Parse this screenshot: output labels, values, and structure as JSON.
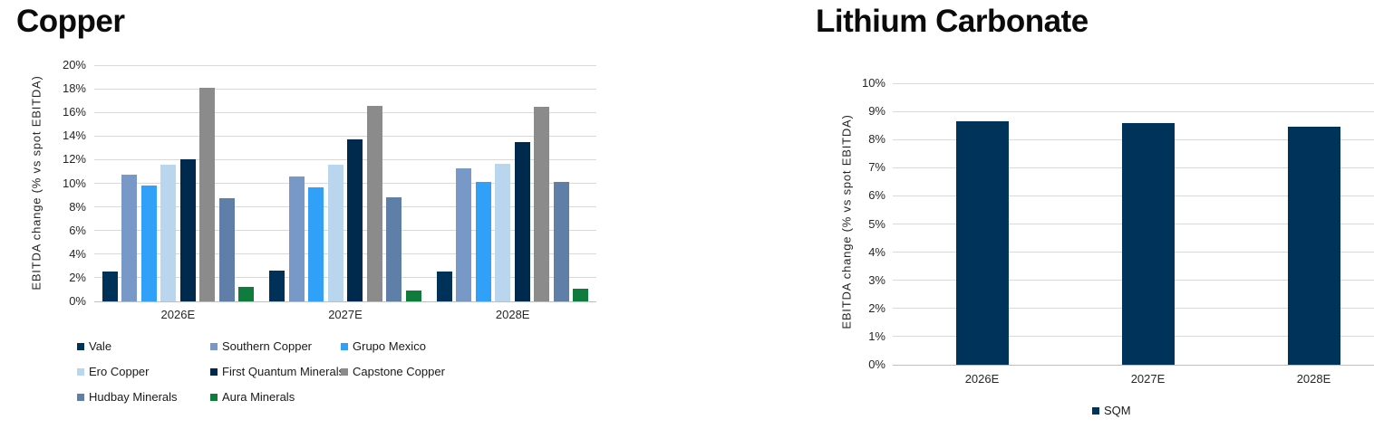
{
  "page": {
    "background": "#ffffff",
    "text_color": "#262626"
  },
  "chart_data": [
    {
      "type": "bar",
      "title": "Copper",
      "ylabel": "EBITDA change (% vs spot EBITDA)",
      "xlabel": "",
      "categories": [
        "2026E",
        "2027E",
        "2028E"
      ],
      "series": [
        {
          "name": "Vale",
          "color": "#003159",
          "values": [
            2.5,
            2.6,
            2.55
          ]
        },
        {
          "name": "Southern Copper",
          "color": "#7899C7",
          "values": [
            10.75,
            10.55,
            11.3
          ]
        },
        {
          "name": "Grupo Mexico",
          "color": "#30A0F8",
          "values": [
            9.8,
            9.65,
            10.15
          ]
        },
        {
          "name": "Ero Copper",
          "color": "#B9D6EE",
          "values": [
            11.6,
            11.6,
            11.65
          ]
        },
        {
          "name": "First Quantum Minerals",
          "color": "#002A4D",
          "values": [
            12.0,
            13.7,
            13.45
          ]
        },
        {
          "name": "Capstone Copper",
          "color": "#8B8B8B",
          "values": [
            18.05,
            16.55,
            16.45
          ]
        },
        {
          "name": "Hudbay Minerals",
          "color": "#5F7FA9",
          "values": [
            8.75,
            8.8,
            10.15
          ]
        },
        {
          "name": "Aura Minerals",
          "color": "#0F7B3D",
          "values": [
            1.25,
            0.9,
            1.05
          ]
        }
      ],
      "ylim": [
        0,
        20
      ],
      "ytick_labels": [
        "0%",
        "2%",
        "4%",
        "6%",
        "8%",
        "10%",
        "12%",
        "14%",
        "16%",
        "18%",
        "20%"
      ],
      "grid": true,
      "grid_color": "#d9d9d9",
      "axis_color": "#bfbfbf",
      "legend_position": "bottom-left"
    },
    {
      "type": "bar",
      "title": "Lithium Carbonate",
      "ylabel": "EBITDA change (% vs spot EBITDA)",
      "xlabel": "",
      "categories": [
        "2026E",
        "2027E",
        "2028E"
      ],
      "series": [
        {
          "name": "SQM",
          "color": "#003359",
          "values": [
            8.65,
            8.6,
            8.45
          ]
        }
      ],
      "ylim": [
        0,
        10
      ],
      "ytick_labels": [
        "0%",
        "1%",
        "2%",
        "3%",
        "4%",
        "5%",
        "6%",
        "7%",
        "8%",
        "9%",
        "10%"
      ],
      "grid": true,
      "grid_color": "#d9d9d9",
      "axis_color": "#bfbfbf",
      "legend_position": "bottom-center"
    }
  ]
}
